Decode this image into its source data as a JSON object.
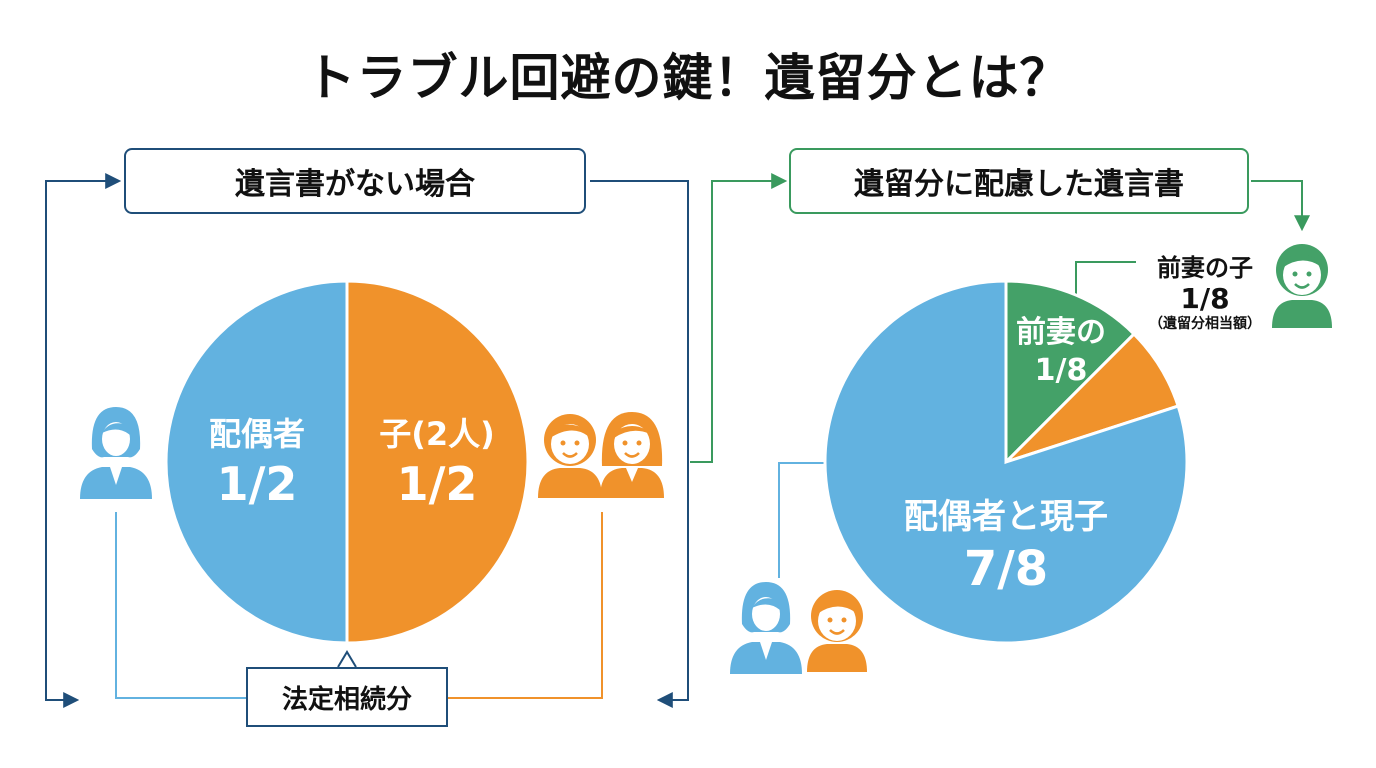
{
  "title": "トラブル回避の鍵！遺留分とは？",
  "left_panel": {
    "header": "遺言書がない場合",
    "footer": "法定相続分",
    "chart_data": {
      "type": "pie",
      "slices": [
        {
          "label": "配偶者",
          "value_label": "1/2",
          "value": 0.5,
          "color": "#62b2e0"
        },
        {
          "label": "子(2人)",
          "value_label": "1/2",
          "value": 0.5,
          "color": "#f0922b"
        }
      ]
    }
  },
  "right_panel": {
    "header": "遺留分に配慮した遺言書",
    "callout": {
      "title": "前妻の子",
      "value": "1/8",
      "note": "（遺留分相当額）"
    },
    "chart_data": {
      "type": "pie",
      "slices": [
        {
          "label": "前妻の",
          "value_label": "1/8",
          "value": 0.125,
          "color": "#44a168"
        },
        {
          "label": "",
          "value_label": "",
          "value": 0.075,
          "color": "#f0922b"
        },
        {
          "label": "配偶者と現子",
          "value_label": "7/8",
          "value": 0.8,
          "color": "#62b2e0"
        }
      ]
    }
  },
  "colors": {
    "navy": "#1f4e79",
    "green": "#3a9a5e",
    "blue": "#62b2e0",
    "orange": "#f0922b"
  },
  "icons": [
    "spouse-icon",
    "child-icon",
    "child-icon",
    "ex-wife-child-icon",
    "spouse-icon",
    "current-child-icon"
  ]
}
